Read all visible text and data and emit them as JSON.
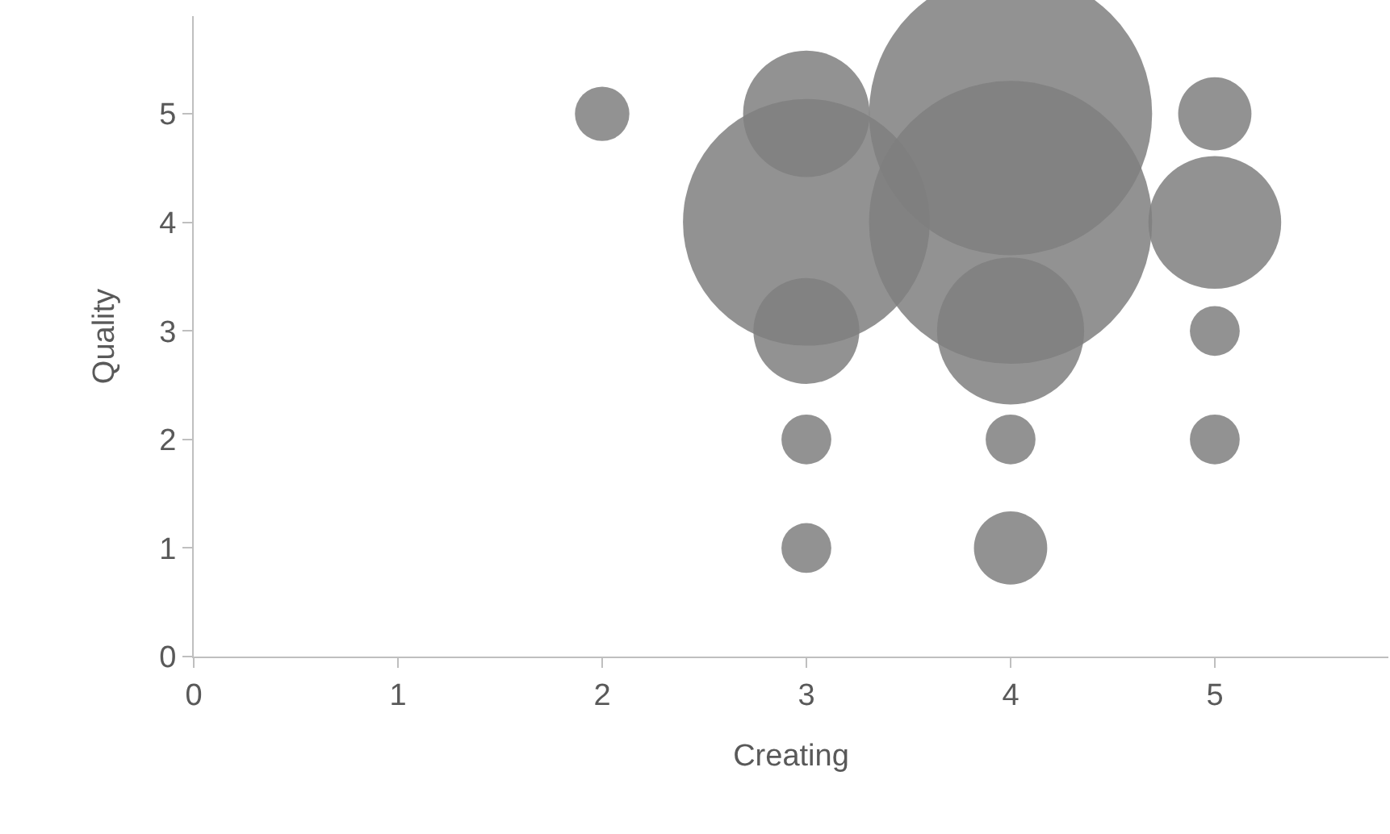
{
  "chart_data": {
    "type": "bubble",
    "relative": false,
    "xlabel": "Creating",
    "ylabel": "Quality",
    "x": [
      2,
      3,
      3,
      3,
      3,
      3,
      4,
      4,
      4,
      4,
      4,
      5,
      5,
      5,
      5
    ],
    "series": [
      {
        "color": "#7f7f7f",
        "values": [
          5,
          5,
          4,
          3,
          2,
          1,
          5,
          4,
          3,
          2,
          1,
          5,
          4,
          3,
          2
        ],
        "sizes": [
          0.037,
          0.2,
          0.76,
          0.14,
          0.031,
          0.031,
          1,
          1,
          0.27,
          0.031,
          0.067,
          0.067,
          0.22,
          0.031,
          0.031
        ]
      }
    ],
    "xlim": [
      0,
      5.85
    ],
    "ylim": [
      0,
      5.9
    ],
    "xticks": [
      0,
      1,
      2,
      3,
      4,
      5
    ],
    "yticks": [
      0,
      1,
      2,
      3,
      4,
      5
    ],
    "marker": "circle"
  }
}
